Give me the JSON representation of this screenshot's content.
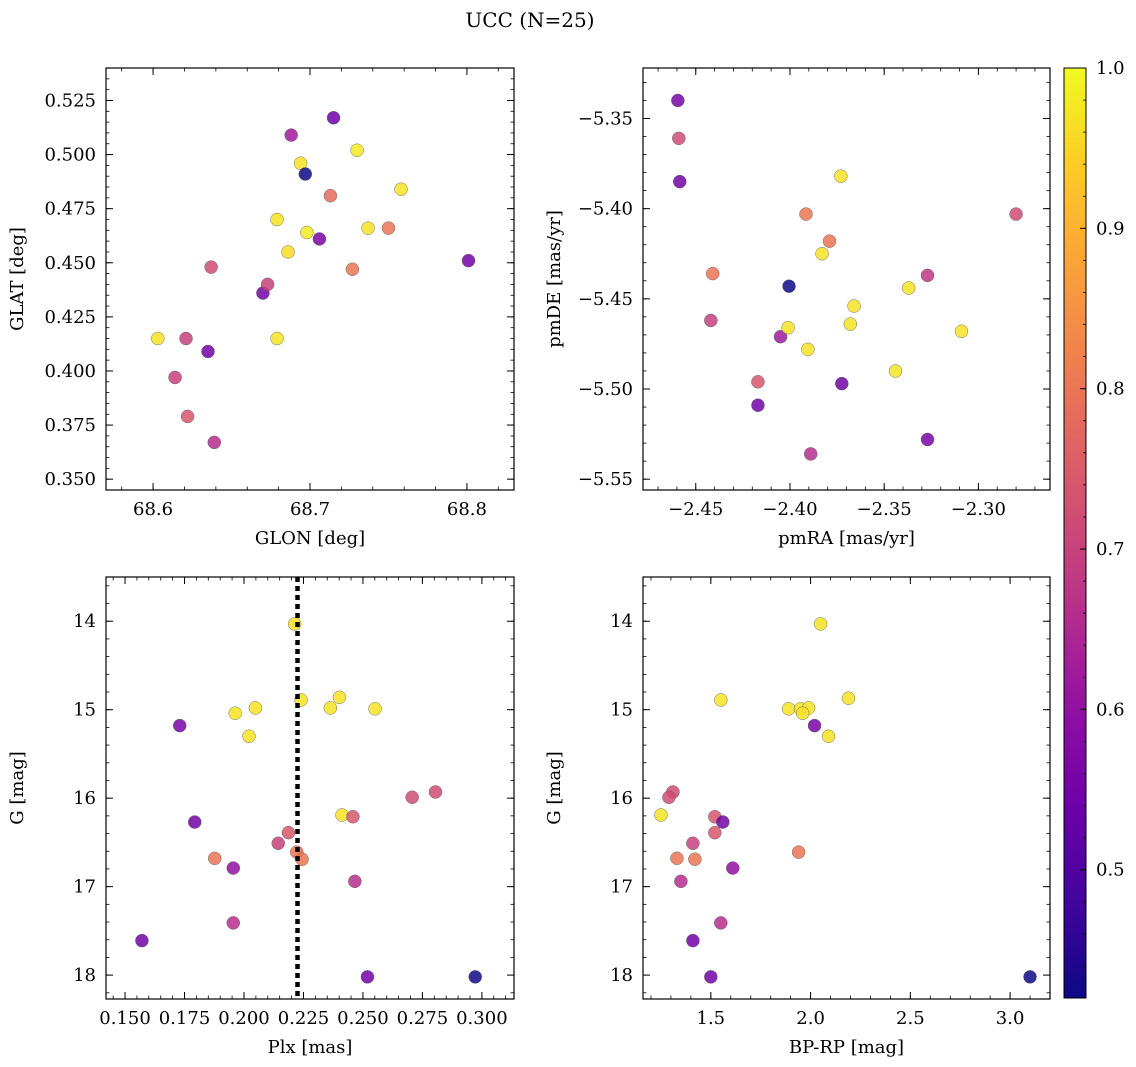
{
  "figure": {
    "title": "UCC (N=25)"
  },
  "colorbar": {
    "cmap": "plasma",
    "range": [
      0.42,
      1.0
    ],
    "ticks": [
      "0.5",
      "0.6",
      "0.7",
      "0.8",
      "0.9",
      "1.0"
    ],
    "tick_values": [
      0.5,
      0.6,
      0.7,
      0.8,
      0.9,
      1.0
    ]
  },
  "chart_data": [
    {
      "type": "scatter",
      "id": "glon-glat",
      "xlabel": "GLON [deg]",
      "ylabel": "GLAT [deg]",
      "xlim": [
        68.57,
        68.83
      ],
      "ylim": [
        0.345,
        0.54
      ],
      "x_ticks": [
        68.6,
        68.7,
        68.8
      ],
      "x_tick_labels": [
        "68.6",
        "68.7",
        "68.8"
      ],
      "y_ticks": [
        0.35,
        0.375,
        0.4,
        0.425,
        0.45,
        0.475,
        0.5,
        0.525
      ],
      "y_tick_labels": [
        "0.350",
        "0.375",
        "0.400",
        "0.425",
        "0.450",
        "0.475",
        "0.500",
        "0.525"
      ],
      "y_inverted": false,
      "points": [
        {
          "x": 68.603,
          "y": 0.415,
          "c": 0.97
        },
        {
          "x": 68.614,
          "y": 0.397,
          "c": 0.7
        },
        {
          "x": 68.621,
          "y": 0.415,
          "c": 0.7
        },
        {
          "x": 68.622,
          "y": 0.379,
          "c": 0.74
        },
        {
          "x": 68.635,
          "y": 0.409,
          "c": 0.55
        },
        {
          "x": 68.637,
          "y": 0.448,
          "c": 0.72
        },
        {
          "x": 68.639,
          "y": 0.367,
          "c": 0.66
        },
        {
          "x": 68.67,
          "y": 0.436,
          "c": 0.55
        },
        {
          "x": 68.673,
          "y": 0.44,
          "c": 0.7
        },
        {
          "x": 68.679,
          "y": 0.47,
          "c": 0.97
        },
        {
          "x": 68.679,
          "y": 0.415,
          "c": 0.97
        },
        {
          "x": 68.686,
          "y": 0.455,
          "c": 0.96
        },
        {
          "x": 68.688,
          "y": 0.509,
          "c": 0.62
        },
        {
          "x": 68.694,
          "y": 0.496,
          "c": 0.97
        },
        {
          "x": 68.697,
          "y": 0.491,
          "c": 0.42
        },
        {
          "x": 68.698,
          "y": 0.464,
          "c": 0.98
        },
        {
          "x": 68.706,
          "y": 0.461,
          "c": 0.56
        },
        {
          "x": 68.713,
          "y": 0.481,
          "c": 0.78
        },
        {
          "x": 68.715,
          "y": 0.517,
          "c": 0.54
        },
        {
          "x": 68.727,
          "y": 0.447,
          "c": 0.8
        },
        {
          "x": 68.73,
          "y": 0.502,
          "c": 0.98
        },
        {
          "x": 68.737,
          "y": 0.466,
          "c": 0.97
        },
        {
          "x": 68.75,
          "y": 0.466,
          "c": 0.8
        },
        {
          "x": 68.758,
          "y": 0.484,
          "c": 0.97
        },
        {
          "x": 68.801,
          "y": 0.451,
          "c": 0.55
        }
      ]
    },
    {
      "type": "scatter",
      "id": "pmra-pmde",
      "xlabel": "pmRA [mas/yr]",
      "ylabel": "pmDE [mas/yr]",
      "xlim": [
        -2.478,
        -2.262
      ],
      "ylim": [
        -5.556,
        -5.322
      ],
      "x_ticks": [
        -2.45,
        -2.4,
        -2.35,
        -2.3
      ],
      "x_tick_labels": [
        "−2.45",
        "−2.40",
        "−2.35",
        "−2.30"
      ],
      "y_ticks": [
        -5.55,
        -5.5,
        -5.45,
        -5.4,
        -5.35
      ],
      "y_tick_labels": [
        "−5.55",
        "−5.50",
        "−5.45",
        "−5.40",
        "−5.35"
      ],
      "y_inverted": false,
      "points": [
        {
          "x": -2.4595,
          "y": -5.34,
          "c": 0.56
        },
        {
          "x": -2.459,
          "y": -5.361,
          "c": 0.72
        },
        {
          "x": -2.4585,
          "y": -5.385,
          "c": 0.55
        },
        {
          "x": -2.442,
          "y": -5.462,
          "c": 0.7
        },
        {
          "x": -2.441,
          "y": -5.436,
          "c": 0.8
        },
        {
          "x": -2.417,
          "y": -5.496,
          "c": 0.74
        },
        {
          "x": -2.417,
          "y": -5.509,
          "c": 0.55
        },
        {
          "x": -2.405,
          "y": -5.471,
          "c": 0.62
        },
        {
          "x": -2.401,
          "y": -5.466,
          "c": 0.97
        },
        {
          "x": -2.4005,
          "y": -5.443,
          "c": 0.42
        },
        {
          "x": -2.3915,
          "y": -5.403,
          "c": 0.8
        },
        {
          "x": -2.3905,
          "y": -5.478,
          "c": 0.97
        },
        {
          "x": -2.389,
          "y": -5.536,
          "c": 0.66
        },
        {
          "x": -2.373,
          "y": -5.382,
          "c": 0.97
        },
        {
          "x": -2.3725,
          "y": -5.497,
          "c": 0.55
        },
        {
          "x": -2.383,
          "y": -5.425,
          "c": 0.97
        },
        {
          "x": -2.379,
          "y": -5.418,
          "c": 0.8
        },
        {
          "x": -2.368,
          "y": -5.464,
          "c": 0.97
        },
        {
          "x": -2.366,
          "y": -5.454,
          "c": 0.97
        },
        {
          "x": -2.344,
          "y": -5.49,
          "c": 0.97
        },
        {
          "x": -2.337,
          "y": -5.444,
          "c": 0.97
        },
        {
          "x": -2.327,
          "y": -5.437,
          "c": 0.68
        },
        {
          "x": -2.327,
          "y": -5.528,
          "c": 0.56
        },
        {
          "x": -2.309,
          "y": -5.468,
          "c": 0.97
        },
        {
          "x": -2.28,
          "y": -5.403,
          "c": 0.72
        }
      ]
    },
    {
      "type": "scatter",
      "id": "plx-g",
      "xlabel": "Plx [mas]",
      "ylabel": "G [mag]",
      "xlim": [
        0.142,
        0.3135
      ],
      "ylim": [
        18.27,
        13.5
      ],
      "x_ticks": [
        0.15,
        0.175,
        0.2,
        0.225,
        0.25,
        0.275,
        0.3
      ],
      "x_tick_labels": [
        "0.150",
        "0.175",
        "0.200",
        "0.225",
        "0.250",
        "0.275",
        "0.300"
      ],
      "y_ticks": [
        14,
        15,
        16,
        17,
        18
      ],
      "y_tick_labels": [
        "14",
        "15",
        "16",
        "17",
        "18"
      ],
      "y_inverted": true,
      "vline": {
        "x": 0.2225,
        "style": "dotted"
      },
      "points": [
        {
          "x": 0.2213,
          "y": 14.03,
          "c": 0.97
        },
        {
          "x": 0.224,
          "y": 14.89,
          "c": 0.97
        },
        {
          "x": 0.2048,
          "y": 14.98,
          "c": 0.97
        },
        {
          "x": 0.1963,
          "y": 15.04,
          "c": 0.97
        },
        {
          "x": 0.2021,
          "y": 15.3,
          "c": 0.97
        },
        {
          "x": 0.2401,
          "y": 14.86,
          "c": 0.97
        },
        {
          "x": 0.2363,
          "y": 14.98,
          "c": 0.97
        },
        {
          "x": 0.2551,
          "y": 14.99,
          "c": 0.97
        },
        {
          "x": 0.173,
          "y": 15.18,
          "c": 0.56
        },
        {
          "x": 0.1793,
          "y": 16.27,
          "c": 0.55
        },
        {
          "x": 0.2707,
          "y": 15.99,
          "c": 0.72
        },
        {
          "x": 0.2805,
          "y": 15.93,
          "c": 0.72
        },
        {
          "x": 0.2412,
          "y": 16.19,
          "c": 0.97
        },
        {
          "x": 0.2458,
          "y": 16.21,
          "c": 0.74
        },
        {
          "x": 0.2187,
          "y": 16.39,
          "c": 0.74
        },
        {
          "x": 0.2144,
          "y": 16.51,
          "c": 0.7
        },
        {
          "x": 0.2222,
          "y": 16.61,
          "c": 0.8
        },
        {
          "x": 0.2244,
          "y": 16.69,
          "c": 0.8
        },
        {
          "x": 0.1877,
          "y": 16.68,
          "c": 0.8
        },
        {
          "x": 0.1955,
          "y": 16.79,
          "c": 0.6
        },
        {
          "x": 0.2466,
          "y": 16.94,
          "c": 0.66
        },
        {
          "x": 0.1955,
          "y": 17.41,
          "c": 0.66
        },
        {
          "x": 0.1571,
          "y": 17.61,
          "c": 0.55
        },
        {
          "x": 0.2519,
          "y": 18.02,
          "c": 0.55
        },
        {
          "x": 0.2972,
          "y": 18.02,
          "c": 0.42
        }
      ]
    },
    {
      "type": "scatter",
      "id": "bprp-g",
      "xlabel": "BP-RP [mag]",
      "ylabel": "G [mag]",
      "xlim": [
        1.16,
        3.2
      ],
      "ylim": [
        18.27,
        13.5
      ],
      "x_ticks": [
        1.5,
        2.0,
        2.5,
        3.0
      ],
      "x_tick_labels": [
        "1.5",
        "2.0",
        "2.5",
        "3.0"
      ],
      "y_ticks": [
        14,
        15,
        16,
        17,
        18
      ],
      "y_tick_labels": [
        "14",
        "15",
        "16",
        "17",
        "18"
      ],
      "y_inverted": true,
      "points": [
        {
          "x": 2.05,
          "y": 14.03,
          "c": 0.97
        },
        {
          "x": 1.55,
          "y": 14.89,
          "c": 0.97
        },
        {
          "x": 2.19,
          "y": 14.87,
          "c": 0.97
        },
        {
          "x": 1.89,
          "y": 14.99,
          "c": 0.97
        },
        {
          "x": 1.95,
          "y": 14.99,
          "c": 0.97
        },
        {
          "x": 1.99,
          "y": 14.98,
          "c": 0.97
        },
        {
          "x": 1.96,
          "y": 15.04,
          "c": 0.97
        },
        {
          "x": 2.09,
          "y": 15.3,
          "c": 0.97
        },
        {
          "x": 2.02,
          "y": 15.18,
          "c": 0.56
        },
        {
          "x": 1.31,
          "y": 15.93,
          "c": 0.72
        },
        {
          "x": 1.29,
          "y": 15.99,
          "c": 0.72
        },
        {
          "x": 1.25,
          "y": 16.19,
          "c": 0.97
        },
        {
          "x": 1.52,
          "y": 16.21,
          "c": 0.74
        },
        {
          "x": 1.56,
          "y": 16.27,
          "c": 0.55
        },
        {
          "x": 1.52,
          "y": 16.39,
          "c": 0.74
        },
        {
          "x": 1.41,
          "y": 16.51,
          "c": 0.7
        },
        {
          "x": 1.94,
          "y": 16.61,
          "c": 0.8
        },
        {
          "x": 1.33,
          "y": 16.68,
          "c": 0.8
        },
        {
          "x": 1.42,
          "y": 16.69,
          "c": 0.8
        },
        {
          "x": 1.61,
          "y": 16.79,
          "c": 0.6
        },
        {
          "x": 1.35,
          "y": 16.94,
          "c": 0.66
        },
        {
          "x": 1.55,
          "y": 17.41,
          "c": 0.66
        },
        {
          "x": 1.41,
          "y": 17.61,
          "c": 0.55
        },
        {
          "x": 1.5,
          "y": 18.02,
          "c": 0.55
        },
        {
          "x": 3.1,
          "y": 18.02,
          "c": 0.42
        }
      ]
    }
  ]
}
